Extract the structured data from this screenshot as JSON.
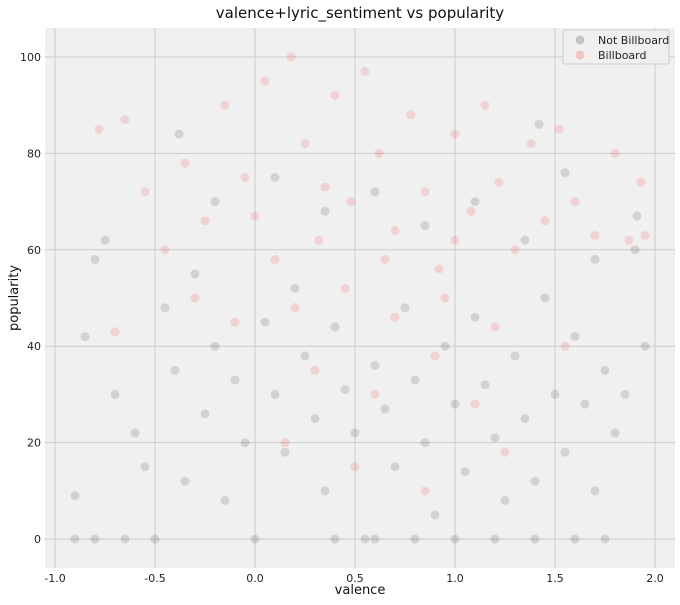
{
  "chart_data": {
    "type": "scatter",
    "title": "valence+lyric_sentiment vs popularity",
    "xlabel": "valence",
    "ylabel": "popularity",
    "xlim": [
      -1.05,
      2.1
    ],
    "ylim": [
      -6,
      106
    ],
    "xticks": [
      -1.0,
      -0.5,
      0.0,
      0.5,
      1.0,
      1.5,
      2.0
    ],
    "xtick_labels": [
      "-1.0",
      "-0.5",
      "0.0",
      "0.5",
      "1.0",
      "1.5",
      "2.0"
    ],
    "yticks": [
      0,
      20,
      40,
      60,
      80,
      100
    ],
    "ytick_labels": [
      "0",
      "20",
      "40",
      "60",
      "80",
      "100"
    ],
    "grid": true,
    "legend_position": "top-right",
    "series": [
      {
        "name": "Not Billboard",
        "color": "#000000",
        "alpha": 0.12,
        "points": [
          [
            -0.9,
            9
          ],
          [
            -0.85,
            42
          ],
          [
            -0.8,
            58
          ],
          [
            -0.75,
            62
          ],
          [
            -0.7,
            30
          ],
          [
            -0.65,
            0
          ],
          [
            -0.6,
            22
          ],
          [
            -0.55,
            15
          ],
          [
            -0.5,
            0
          ],
          [
            -0.45,
            48
          ],
          [
            -0.4,
            35
          ],
          [
            -0.35,
            12
          ],
          [
            -0.3,
            55
          ],
          [
            -0.25,
            26
          ],
          [
            -0.2,
            40
          ],
          [
            -0.15,
            8
          ],
          [
            -0.1,
            33
          ],
          [
            -0.05,
            20
          ],
          [
            0.0,
            0
          ],
          [
            0.05,
            45
          ],
          [
            0.1,
            30
          ],
          [
            0.15,
            18
          ],
          [
            0.2,
            52
          ],
          [
            0.25,
            38
          ],
          [
            0.3,
            25
          ],
          [
            0.35,
            10
          ],
          [
            0.4,
            44
          ],
          [
            0.45,
            31
          ],
          [
            0.5,
            22
          ],
          [
            0.55,
            0
          ],
          [
            0.6,
            36
          ],
          [
            0.65,
            27
          ],
          [
            0.7,
            15
          ],
          [
            0.75,
            48
          ],
          [
            0.8,
            33
          ],
          [
            0.85,
            20
          ],
          [
            0.9,
            5
          ],
          [
            0.95,
            40
          ],
          [
            1.0,
            28
          ],
          [
            1.05,
            14
          ],
          [
            1.1,
            46
          ],
          [
            1.15,
            32
          ],
          [
            1.2,
            21
          ],
          [
            1.25,
            8
          ],
          [
            1.3,
            38
          ],
          [
            1.35,
            25
          ],
          [
            1.4,
            12
          ],
          [
            1.45,
            50
          ],
          [
            1.5,
            30
          ],
          [
            1.55,
            18
          ],
          [
            1.6,
            42
          ],
          [
            1.65,
            28
          ],
          [
            1.7,
            10
          ],
          [
            1.75,
            35
          ],
          [
            1.8,
            22
          ],
          [
            1.85,
            30
          ],
          [
            1.9,
            60
          ],
          [
            1.95,
            40
          ],
          [
            -0.9,
            0
          ],
          [
            -0.8,
            0
          ],
          [
            0.4,
            0
          ],
          [
            0.6,
            0
          ],
          [
            0.8,
            0
          ],
          [
            1.0,
            0
          ],
          [
            1.2,
            0
          ],
          [
            1.4,
            0
          ],
          [
            1.6,
            0
          ],
          [
            1.75,
            0
          ],
          [
            -0.2,
            70
          ],
          [
            0.1,
            75
          ],
          [
            0.35,
            68
          ],
          [
            0.6,
            72
          ],
          [
            0.85,
            65
          ],
          [
            1.1,
            70
          ],
          [
            1.35,
            62
          ],
          [
            1.55,
            76
          ],
          [
            1.7,
            58
          ],
          [
            1.91,
            67
          ],
          [
            -0.38,
            84
          ],
          [
            1.42,
            86
          ]
        ]
      },
      {
        "name": "Billboard",
        "color": "#ff0000",
        "alpha": 0.12,
        "points": [
          [
            -0.78,
            85
          ],
          [
            -0.7,
            43
          ],
          [
            -0.65,
            87
          ],
          [
            -0.55,
            72
          ],
          [
            -0.45,
            60
          ],
          [
            -0.35,
            78
          ],
          [
            -0.25,
            66
          ],
          [
            -0.15,
            90
          ],
          [
            -0.05,
            75
          ],
          [
            0.05,
            95
          ],
          [
            0.1,
            58
          ],
          [
            0.18,
            100
          ],
          [
            0.25,
            82
          ],
          [
            0.32,
            62
          ],
          [
            0.4,
            92
          ],
          [
            0.48,
            70
          ],
          [
            0.55,
            97
          ],
          [
            0.62,
            80
          ],
          [
            0.7,
            64
          ],
          [
            0.78,
            88
          ],
          [
            0.85,
            72
          ],
          [
            0.92,
            56
          ],
          [
            1.0,
            84
          ],
          [
            1.08,
            68
          ],
          [
            1.15,
            90
          ],
          [
            1.22,
            74
          ],
          [
            1.3,
            60
          ],
          [
            1.38,
            82
          ],
          [
            1.45,
            66
          ],
          [
            1.52,
            85
          ],
          [
            1.6,
            70
          ],
          [
            1.7,
            63
          ],
          [
            1.8,
            80
          ],
          [
            1.87,
            62
          ],
          [
            1.93,
            74
          ],
          [
            1.95,
            63
          ],
          [
            0.2,
            48
          ],
          [
            0.45,
            52
          ],
          [
            0.7,
            46
          ],
          [
            0.95,
            50
          ],
          [
            1.2,
            44
          ],
          [
            0.3,
            35
          ],
          [
            0.6,
            30
          ],
          [
            0.9,
            38
          ],
          [
            1.1,
            28
          ],
          [
            -0.3,
            50
          ],
          [
            -0.1,
            45
          ],
          [
            0.15,
            20
          ],
          [
            0.5,
            15
          ],
          [
            0.85,
            10
          ],
          [
            1.25,
            18
          ],
          [
            1.55,
            40
          ],
          [
            0.0,
            67
          ],
          [
            0.35,
            73
          ],
          [
            0.65,
            58
          ],
          [
            1.0,
            62
          ]
        ]
      }
    ]
  }
}
